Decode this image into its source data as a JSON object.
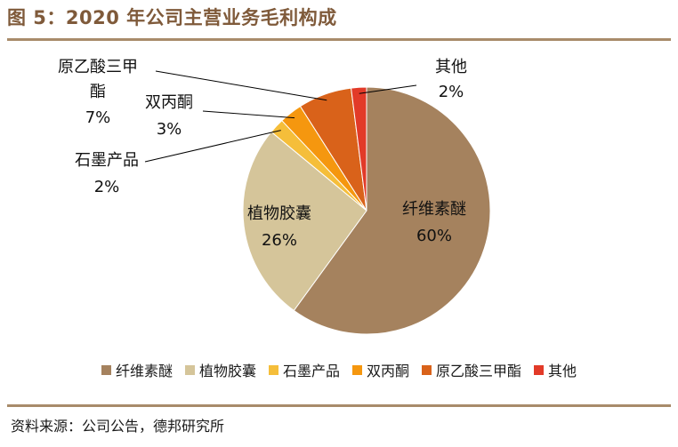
{
  "header": {
    "title": "图 5：2020 年公司主营业务毛利构成"
  },
  "footer": {
    "source": "资料来源：公司公告，德邦研究所"
  },
  "chart_data": {
    "type": "pie",
    "slices": [
      {
        "name": "纤维素醚",
        "value": 60,
        "label": "60%",
        "color": "#A5825E"
      },
      {
        "name": "植物胶囊",
        "value": 26,
        "label": "26%",
        "color": "#D5C59A"
      },
      {
        "name": "石墨产品",
        "value": 2,
        "label": "2%",
        "color": "#F5BE3A"
      },
      {
        "name": "双丙酮",
        "value": 3,
        "label": "3%",
        "color": "#F5970F"
      },
      {
        "name": "原乙酸三甲酯",
        "value": 7,
        "label": "7%",
        "color": "#D9621A"
      },
      {
        "name": "其他",
        "value": 2,
        "label": "2%",
        "color": "#E23A28"
      }
    ],
    "legend_position": "bottom"
  }
}
